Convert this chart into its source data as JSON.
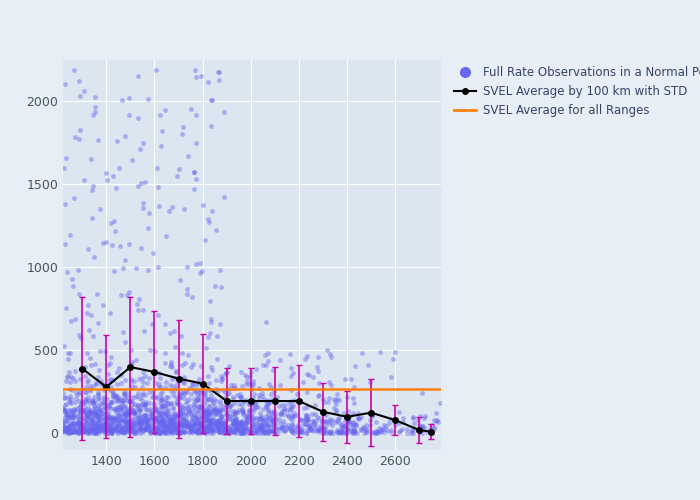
{
  "scatter_color": "#6666ee",
  "scatter_alpha": 0.45,
  "scatter_size": 12,
  "line_color": "black",
  "errorbar_color": "#cc00aa",
  "hline_color": "#ff7f0e",
  "hline_value": 270,
  "bg_color": "#dce6f0",
  "fig_bg_color": "#e8eef5",
  "xlim": [
    1220,
    2790
  ],
  "ylim": [
    -100,
    2250
  ],
  "bin_centers": [
    1300,
    1400,
    1500,
    1600,
    1700,
    1800,
    1900,
    2000,
    2100,
    2200,
    2300,
    2400,
    2500,
    2600,
    2700,
    2750
  ],
  "bin_means": [
    390,
    280,
    400,
    370,
    330,
    300,
    195,
    195,
    195,
    195,
    130,
    100,
    125,
    80,
    20,
    10
  ],
  "bin_stds": [
    430,
    310,
    420,
    365,
    355,
    300,
    200,
    200,
    205,
    215,
    175,
    155,
    200,
    90,
    80,
    45
  ],
  "legend_labels": [
    "Full Rate Observations in a Normal Point",
    "SVEL Average by 100 km with STD",
    "SVEL Average for all Ranges"
  ],
  "legend_scatter_color": "#6666ee",
  "legend_line_color": "black",
  "legend_hline_color": "#ff7f0e",
  "tick_label_color": "#445566",
  "grid_color": "#c8d4e0"
}
